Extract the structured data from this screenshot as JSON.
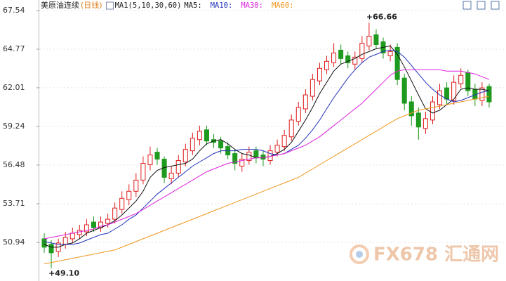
{
  "chart_data": {
    "type": "candlestick",
    "title": "美原油连续",
    "subtitle": "(日线)",
    "indicator": "MA1(5,10,30,60)",
    "watermark": "FX678 汇通网",
    "up_color": "#e02020",
    "down_color": "#1e9a1e",
    "ylim": [
      48.18,
      68.29
    ],
    "yticks": [
      50.94,
      53.71,
      56.48,
      59.24,
      62.01,
      64.77,
      67.54
    ],
    "grid": true,
    "annotations": [
      {
        "text": "+66.66",
        "value": 66.66,
        "at": "high"
      },
      {
        "text": "+49.10",
        "value": 49.1,
        "at": "low"
      }
    ],
    "ohlc": {
      "open": [
        51.2,
        50.8,
        50.3,
        50.8,
        51.2,
        51.5,
        51.7,
        52.4,
        52.0,
        52.3,
        52.6,
        53.3,
        54.0,
        54.6,
        55.4,
        56.5,
        57.4,
        56.9,
        55.5,
        55.9,
        56.7,
        57.5,
        58.3,
        59.0,
        58.3,
        58.2,
        57.8,
        57.3,
        56.4,
        56.8,
        57.5,
        57.2,
        56.8,
        57.4,
        57.8,
        58.5,
        59.6,
        60.5,
        61.4,
        62.5,
        63.3,
        63.8,
        64.7,
        64.3,
        63.7,
        64.1,
        65.0,
        65.8,
        65.3,
        64.3,
        64.9,
        62.7,
        61.0,
        60.2,
        59.1,
        59.7,
        60.8,
        62.0,
        61.1,
        62.3,
        63.1,
        61.9,
        61.1,
        62.1
      ],
      "high": [
        51.6,
        51.1,
        51.2,
        51.7,
        52.0,
        52.2,
        52.6,
        52.8,
        52.8,
        53.0,
        53.8,
        54.6,
        55.1,
        55.9,
        57.1,
        57.8,
        57.7,
        57.1,
        56.4,
        57.2,
        58.0,
        58.8,
        59.3,
        59.3,
        58.7,
        58.5,
        58.1,
        57.6,
        57.3,
        57.8,
        57.8,
        57.5,
        57.9,
        58.3,
        59.0,
        60.1,
        61.0,
        61.9,
        63.0,
        63.8,
        64.3,
        65.2,
        65.1,
        64.6,
        64.6,
        65.7,
        66.66,
        66.2,
        65.6,
        65.1,
        65.2,
        63.0,
        61.4,
        60.6,
        60.3,
        61.4,
        62.3,
        62.4,
        62.9,
        63.4,
        63.3,
        62.3,
        62.4,
        62.3
      ],
      "low": [
        50.2,
        49.1,
        49.9,
        50.5,
        50.9,
        51.2,
        51.4,
        51.7,
        51.7,
        52.0,
        52.3,
        53.0,
        53.6,
        54.2,
        55.1,
        56.1,
        56.5,
        55.2,
        55.1,
        55.6,
        56.4,
        57.2,
        57.9,
        57.9,
        57.7,
        57.3,
        56.9,
        56.1,
        56.0,
        56.5,
        56.6,
        56.4,
        56.5,
        57.1,
        57.5,
        58.2,
        59.3,
        60.2,
        61.1,
        62.2,
        63.0,
        63.5,
        63.7,
        63.4,
        63.3,
        63.8,
        64.7,
        64.8,
        64.1,
        63.9,
        62.2,
        60.4,
        59.3,
        58.3,
        58.7,
        59.4,
        60.5,
        60.8,
        60.8,
        62.0,
        61.4,
        60.7,
        60.7,
        60.6
      ],
      "close": [
        50.6,
        50.2,
        50.9,
        51.3,
        51.6,
        51.8,
        52.2,
        52.0,
        52.4,
        52.6,
        53.4,
        54.1,
        54.6,
        55.4,
        56.6,
        57.2,
        56.9,
        55.6,
        55.9,
        56.8,
        57.6,
        58.4,
        58.9,
        58.2,
        58.1,
        57.7,
        57.2,
        56.6,
        56.9,
        57.4,
        57.0,
        56.9,
        57.5,
        57.9,
        58.6,
        59.7,
        60.6,
        61.5,
        62.6,
        63.4,
        63.9,
        64.5,
        64.1,
        63.8,
        64.2,
        65.2,
        65.7,
        65.1,
        64.5,
        64.6,
        62.6,
        60.9,
        60.0,
        59.2,
        59.8,
        61.0,
        61.8,
        61.2,
        62.4,
        62.9,
        61.8,
        61.2,
        62.0,
        61.0
      ]
    },
    "series": [
      {
        "name": "MA5:",
        "color": "#111111",
        "values": [
          50.8,
          50.6,
          50.6,
          50.8,
          50.9,
          51.2,
          51.6,
          51.8,
          52.0,
          52.2,
          52.5,
          52.9,
          53.4,
          53.9,
          54.6,
          55.6,
          56.1,
          56.3,
          56.4,
          56.5,
          56.6,
          56.9,
          57.5,
          58.0,
          58.2,
          58.3,
          58.0,
          57.6,
          57.3,
          57.2,
          57.0,
          57.0,
          57.1,
          57.3,
          57.6,
          58.1,
          58.9,
          59.7,
          60.6,
          61.6,
          62.4,
          63.2,
          63.7,
          63.9,
          64.1,
          64.4,
          64.6,
          64.8,
          64.9,
          65.0,
          64.4,
          63.5,
          62.5,
          61.5,
          60.5,
          60.2,
          60.4,
          60.8,
          61.2,
          61.9,
          62.0,
          61.9,
          61.9,
          61.8
        ]
      },
      {
        "name": "MA10:",
        "color": "#2233bb",
        "values": [
          51.0,
          50.9,
          50.8,
          50.8,
          50.8,
          50.9,
          51.1,
          51.3,
          51.5,
          51.6,
          51.9,
          52.2,
          52.6,
          52.9,
          53.4,
          53.9,
          54.4,
          54.8,
          55.2,
          55.6,
          56.0,
          56.4,
          56.7,
          57.0,
          57.3,
          57.5,
          57.5,
          57.5,
          57.6,
          57.6,
          57.6,
          57.5,
          57.3,
          57.2,
          57.3,
          57.6,
          57.9,
          58.4,
          59.0,
          59.7,
          60.5,
          61.3,
          62.0,
          62.7,
          63.3,
          63.8,
          64.2,
          64.4,
          64.6,
          64.7,
          64.6,
          64.2,
          63.6,
          63.0,
          62.4,
          61.9,
          61.5,
          61.2,
          61.0,
          61.1,
          61.3,
          61.5,
          61.7,
          61.8
        ]
      },
      {
        "name": "MA30:",
        "color": "#dd22dd",
        "values": [
          51.2,
          51.3,
          51.4,
          51.5,
          51.6,
          51.7,
          51.8,
          51.9,
          52.1,
          52.2,
          52.4,
          52.6,
          52.8,
          53.0,
          53.3,
          53.6,
          53.9,
          54.2,
          54.5,
          54.8,
          55.1,
          55.4,
          55.7,
          56.0,
          56.2,
          56.4,
          56.6,
          56.7,
          56.8,
          56.9,
          57.0,
          57.0,
          57.1,
          57.2,
          57.3,
          57.5,
          57.7,
          57.9,
          58.2,
          58.5,
          58.9,
          59.3,
          59.7,
          60.1,
          60.5,
          60.9,
          61.4,
          61.9,
          62.4,
          62.9,
          63.2,
          63.3,
          63.3,
          63.3,
          63.3,
          63.3,
          63.3,
          63.2,
          63.2,
          63.2,
          63.1,
          63.0,
          62.8,
          62.6
        ]
      },
      {
        "name": "MA60:",
        "color": "#f0961e",
        "values": [
          49.4,
          49.5,
          49.6,
          49.7,
          49.8,
          49.9,
          50.0,
          50.1,
          50.2,
          50.3,
          50.4,
          50.6,
          50.8,
          51.0,
          51.2,
          51.4,
          51.6,
          51.8,
          52.0,
          52.2,
          52.4,
          52.6,
          52.8,
          53.0,
          53.2,
          53.4,
          53.6,
          53.8,
          54.0,
          54.2,
          54.4,
          54.6,
          54.8,
          55.0,
          55.2,
          55.4,
          55.6,
          55.9,
          56.2,
          56.5,
          56.8,
          57.1,
          57.4,
          57.7,
          58.0,
          58.3,
          58.6,
          58.9,
          59.2,
          59.5,
          59.8,
          60.0,
          60.2,
          60.4,
          60.5,
          60.6,
          60.7,
          60.8,
          60.9,
          61.0,
          61.1,
          61.2,
          61.3,
          61.4
        ]
      }
    ]
  }
}
